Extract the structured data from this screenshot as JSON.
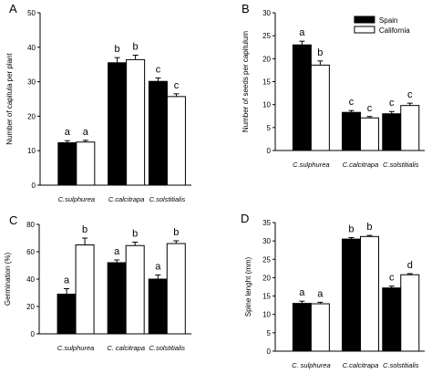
{
  "chart_data": [
    {
      "type": "bar",
      "panel_label": "A",
      "categories": [
        "C.sulphurea",
        "C.calcitrapa",
        "C.solstitialis"
      ],
      "category_style": "italic",
      "ylabel": "Number of capitula per plant",
      "ylim": [
        0,
        50
      ],
      "yticks": [
        "0",
        "10",
        "20",
        "30",
        "40",
        "50"
      ],
      "series": [
        {
          "name": "Spain",
          "values": [
            12.3,
            35.5,
            30.1
          ],
          "errors": [
            0.6,
            1.5,
            1.0
          ],
          "letters": [
            "a",
            "b",
            "c"
          ],
          "color": "#000000"
        },
        {
          "name": "California",
          "values": [
            12.5,
            36.4,
            25.7
          ],
          "errors": [
            0.5,
            1.3,
            0.8
          ],
          "letters": [
            "a",
            "b",
            "c"
          ],
          "color": "#ffffff"
        }
      ]
    },
    {
      "type": "bar",
      "panel_label": "B",
      "categories": [
        "C.sulphurea",
        "C.calcitrapa",
        "C.solstitialis"
      ],
      "category_style": "italic",
      "ylabel": "Number of seeds per capitulum",
      "ylim": [
        0,
        30
      ],
      "yticks": [
        "0",
        "5",
        "10",
        "15",
        "20",
        "25",
        "30"
      ],
      "legend": {
        "position": "top-right",
        "entries": [
          "Spain",
          "California"
        ]
      },
      "series": [
        {
          "name": "Spain",
          "values": [
            23.0,
            8.3,
            8.0
          ],
          "errors": [
            0.8,
            0.4,
            0.5
          ],
          "letters": [
            "a",
            "c",
            "c"
          ],
          "color": "#000000"
        },
        {
          "name": "California",
          "values": [
            18.6,
            7.1,
            9.8
          ],
          "errors": [
            0.9,
            0.3,
            0.5
          ],
          "letters": [
            "b",
            "c",
            "c"
          ],
          "color": "#ffffff"
        }
      ]
    },
    {
      "type": "bar",
      "panel_label": "C",
      "categories": [
        "C.sulphurea",
        "C. calcitrapa",
        "C.solstitialis"
      ],
      "category_style": "italic",
      "ylabel": "Germination (%)",
      "ylim": [
        0,
        80
      ],
      "yticks": [
        "0",
        "20",
        "40",
        "60",
        "80"
      ],
      "series": [
        {
          "name": "Spain",
          "values": [
            29,
            52,
            40
          ],
          "errors": [
            4,
            2,
            3
          ],
          "letters": [
            "a",
            "a",
            "a"
          ],
          "color": "#000000"
        },
        {
          "name": "California",
          "values": [
            65,
            64.5,
            66
          ],
          "errors": [
            5,
            2.5,
            2
          ],
          "letters": [
            "b",
            "b",
            "b"
          ],
          "color": "#ffffff"
        }
      ]
    },
    {
      "type": "bar",
      "panel_label": "D",
      "categories": [
        "C. sulphurea",
        "C.calcitrapa",
        "C.solstitialis"
      ],
      "category_style": "italic",
      "ylabel": "Spine lenght (mm)",
      "ylim": [
        0,
        35
      ],
      "yticks": [
        "0",
        "5",
        "10",
        "15",
        "20",
        "25",
        "30",
        "35"
      ],
      "series": [
        {
          "name": "Spain",
          "values": [
            13.0,
            30.5,
            17.2
          ],
          "errors": [
            0.6,
            0.4,
            0.5
          ],
          "letters": [
            "a",
            "b",
            "c"
          ],
          "color": "#000000"
        },
        {
          "name": "California",
          "values": [
            12.9,
            31.2,
            20.8
          ],
          "errors": [
            0.4,
            0.3,
            0.3
          ],
          "letters": [
            "a",
            "b",
            "d"
          ],
          "color": "#ffffff"
        }
      ]
    }
  ]
}
